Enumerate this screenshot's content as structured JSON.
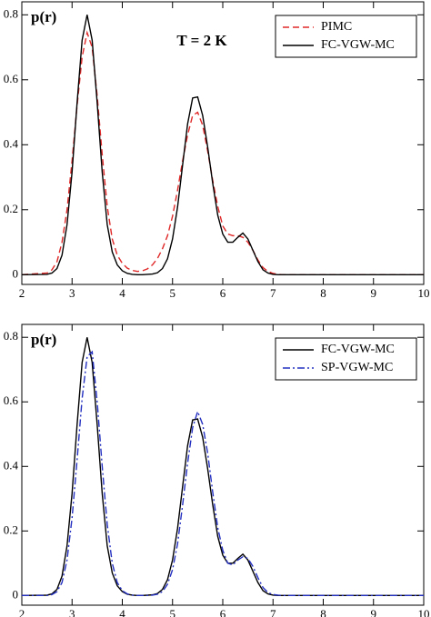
{
  "chart_data": [
    {
      "type": "line",
      "ylabel": "p(r)",
      "annotation": "T = 2 K",
      "x": [
        2,
        2.5,
        2.6,
        2.7,
        2.8,
        2.9,
        3,
        3.1,
        3.2,
        3.3,
        3.4,
        3.5,
        3.6,
        3.7,
        3.8,
        3.9,
        4,
        4.1,
        4.2,
        4.3,
        4.4,
        4.5,
        4.6,
        4.7,
        4.8,
        4.9,
        5,
        5.1,
        5.2,
        5.3,
        5.4,
        5.5,
        5.6,
        5.7,
        5.8,
        5.9,
        6,
        6.1,
        6.2,
        6.3,
        6.4,
        6.5,
        6.6,
        6.7,
        6.8,
        6.9,
        7,
        7.1,
        7.2,
        7.3,
        7.4,
        7.5,
        8,
        9,
        10
      ],
      "series": [
        {
          "name": "PIMC",
          "color": "#e02828",
          "dash": "dashed",
          "values": [
            0,
            0.005,
            0.015,
            0.04,
            0.1,
            0.2,
            0.35,
            0.52,
            0.67,
            0.745,
            0.7,
            0.55,
            0.37,
            0.21,
            0.11,
            0.06,
            0.035,
            0.02,
            0.013,
            0.01,
            0.012,
            0.018,
            0.03,
            0.05,
            0.08,
            0.12,
            0.18,
            0.26,
            0.35,
            0.43,
            0.49,
            0.5,
            0.46,
            0.38,
            0.29,
            0.21,
            0.15,
            0.125,
            0.12,
            0.12,
            0.115,
            0.1,
            0.075,
            0.045,
            0.022,
            0.01,
            0.004,
            0.001,
            0,
            0,
            0,
            0,
            0,
            0,
            0
          ]
        },
        {
          "name": "FC-VGW-MC",
          "color": "#000000",
          "dash": "solid",
          "values": [
            0,
            0.001,
            0.005,
            0.019,
            0.06,
            0.154,
            0.316,
            0.529,
            0.722,
            0.8,
            0.722,
            0.529,
            0.316,
            0.154,
            0.07,
            0.03,
            0.012,
            0.004,
            0.001,
            0,
            0,
            0.001,
            0.002,
            0.006,
            0.019,
            0.049,
            0.11,
            0.208,
            0.337,
            0.464,
            0.544,
            0.547,
            0.49,
            0.392,
            0.281,
            0.183,
            0.125,
            0.1,
            0.1,
            0.115,
            0.128,
            0.11,
            0.075,
            0.04,
            0.015,
            0.005,
            0.001,
            0,
            0,
            0,
            0,
            0,
            0,
            0,
            0
          ]
        }
      ],
      "xlim": [
        2,
        10
      ],
      "ylim": [
        -0.03,
        0.84
      ],
      "xticks": [
        2,
        3,
        4,
        5,
        6,
        7,
        8,
        9,
        10
      ],
      "yticks": [
        0,
        0.2,
        0.4,
        0.6,
        0.8
      ],
      "legend": "upper right"
    },
    {
      "type": "line",
      "ylabel": "p(r)",
      "x": [
        2,
        2.5,
        2.6,
        2.7,
        2.8,
        2.9,
        3,
        3.1,
        3.2,
        3.3,
        3.4,
        3.5,
        3.6,
        3.7,
        3.8,
        3.9,
        4,
        4.1,
        4.2,
        4.3,
        4.4,
        4.5,
        4.6,
        4.7,
        4.8,
        4.9,
        5,
        5.1,
        5.2,
        5.3,
        5.4,
        5.5,
        5.6,
        5.7,
        5.8,
        5.9,
        6,
        6.1,
        6.2,
        6.3,
        6.4,
        6.5,
        6.6,
        6.7,
        6.8,
        6.9,
        7,
        7.1,
        7.2,
        7.3,
        7.4,
        7.5,
        8,
        9,
        10
      ],
      "series": [
        {
          "name": "FC-VGW-MC",
          "color": "#000000",
          "dash": "solid",
          "values": [
            0,
            0.001,
            0.005,
            0.019,
            0.06,
            0.154,
            0.316,
            0.529,
            0.722,
            0.8,
            0.722,
            0.529,
            0.316,
            0.154,
            0.07,
            0.03,
            0.012,
            0.004,
            0.001,
            0,
            0,
            0.001,
            0.002,
            0.006,
            0.019,
            0.049,
            0.11,
            0.208,
            0.337,
            0.464,
            0.544,
            0.547,
            0.49,
            0.392,
            0.281,
            0.183,
            0.125,
            0.1,
            0.1,
            0.115,
            0.128,
            0.11,
            0.075,
            0.04,
            0.015,
            0.005,
            0.001,
            0,
            0,
            0,
            0,
            0,
            0,
            0,
            0
          ]
        },
        {
          "name": "SP-VGW-MC",
          "color": "#2430c0",
          "dash": "dashdot",
          "values": [
            0,
            0,
            0.003,
            0.012,
            0.04,
            0.11,
            0.24,
            0.42,
            0.61,
            0.74,
            0.755,
            0.6,
            0.4,
            0.22,
            0.1,
            0.04,
            0.015,
            0.005,
            0.001,
            0,
            0,
            0,
            0.001,
            0.004,
            0.012,
            0.035,
            0.08,
            0.16,
            0.28,
            0.41,
            0.52,
            0.57,
            0.53,
            0.44,
            0.32,
            0.21,
            0.14,
            0.1,
            0.095,
            0.11,
            0.12,
            0.115,
            0.09,
            0.055,
            0.025,
            0.009,
            0.003,
            0.001,
            0,
            0,
            0,
            0,
            0,
            0,
            0
          ]
        }
      ],
      "xlim": [
        2,
        10
      ],
      "ylim": [
        -0.03,
        0.84
      ],
      "xticks": [
        2,
        3,
        4,
        5,
        6,
        7,
        8,
        9,
        10
      ],
      "yticks": [
        0,
        0.2,
        0.4,
        0.6,
        0.8
      ],
      "legend": "upper right"
    }
  ]
}
